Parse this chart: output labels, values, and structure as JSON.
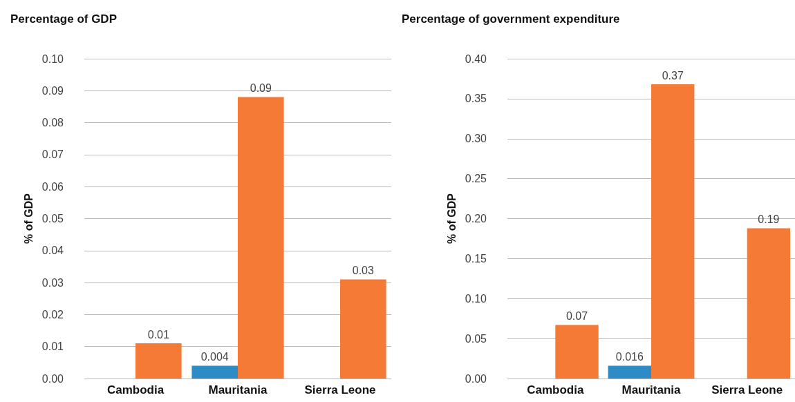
{
  "chart_data": [
    {
      "type": "bar",
      "title": "Percentage of GDP",
      "ylabel": "% of GDP",
      "categories": [
        "Cambodia",
        "Mauritania",
        "Sierra Leone"
      ],
      "series": [
        {
          "color": "#2e8bc6",
          "values": [
            null,
            0.004,
            null
          ],
          "value_labels": [
            null,
            "0.004",
            null
          ]
        },
        {
          "color": "#f47a36",
          "values": [
            0.011,
            0.088,
            0.031
          ],
          "value_labels": [
            "0.01",
            "0.09",
            "0.03"
          ]
        }
      ],
      "ylim": [
        0,
        0.1
      ],
      "yticks": [
        {
          "value": 0,
          "label": "0.00"
        },
        {
          "value": 0.01,
          "label": "0.01"
        },
        {
          "value": 0.02,
          "label": "0.02"
        },
        {
          "value": 0.03,
          "label": "0.03"
        },
        {
          "value": 0.04,
          "label": "0.04"
        },
        {
          "value": 0.05,
          "label": "0.05"
        },
        {
          "value": 0.06,
          "label": "0.06"
        },
        {
          "value": 0.07,
          "label": "0.07"
        },
        {
          "value": 0.08,
          "label": "0.08"
        },
        {
          "value": 0.09,
          "label": "0.09"
        },
        {
          "value": 0.1,
          "label": "0.10"
        }
      ],
      "grid": "y"
    },
    {
      "type": "bar",
      "title": "Percentage of government expenditure",
      "ylabel": "% of GDP",
      "categories": [
        "Cambodia",
        "Mauritania",
        "Sierra Leone"
      ],
      "series": [
        {
          "color": "#2e8bc6",
          "values": [
            null,
            0.016,
            null
          ],
          "value_labels": [
            null,
            "0.016",
            null
          ]
        },
        {
          "color": "#f47a36",
          "values": [
            0.067,
            0.368,
            0.188
          ],
          "value_labels": [
            "0.07",
            "0.37",
            "0.19"
          ]
        }
      ],
      "ylim": [
        0,
        0.4
      ],
      "yticks": [
        {
          "value": 0,
          "label": "0.00"
        },
        {
          "value": 0.05,
          "label": "0.05"
        },
        {
          "value": 0.1,
          "label": "0.10"
        },
        {
          "value": 0.15,
          "label": "0.15"
        },
        {
          "value": 0.2,
          "label": "0.20"
        },
        {
          "value": 0.25,
          "label": "0.25"
        },
        {
          "value": 0.3,
          "label": "0.30"
        },
        {
          "value": 0.35,
          "label": "0.35"
        },
        {
          "value": 0.4,
          "label": "0.40"
        }
      ],
      "grid": "y"
    }
  ]
}
